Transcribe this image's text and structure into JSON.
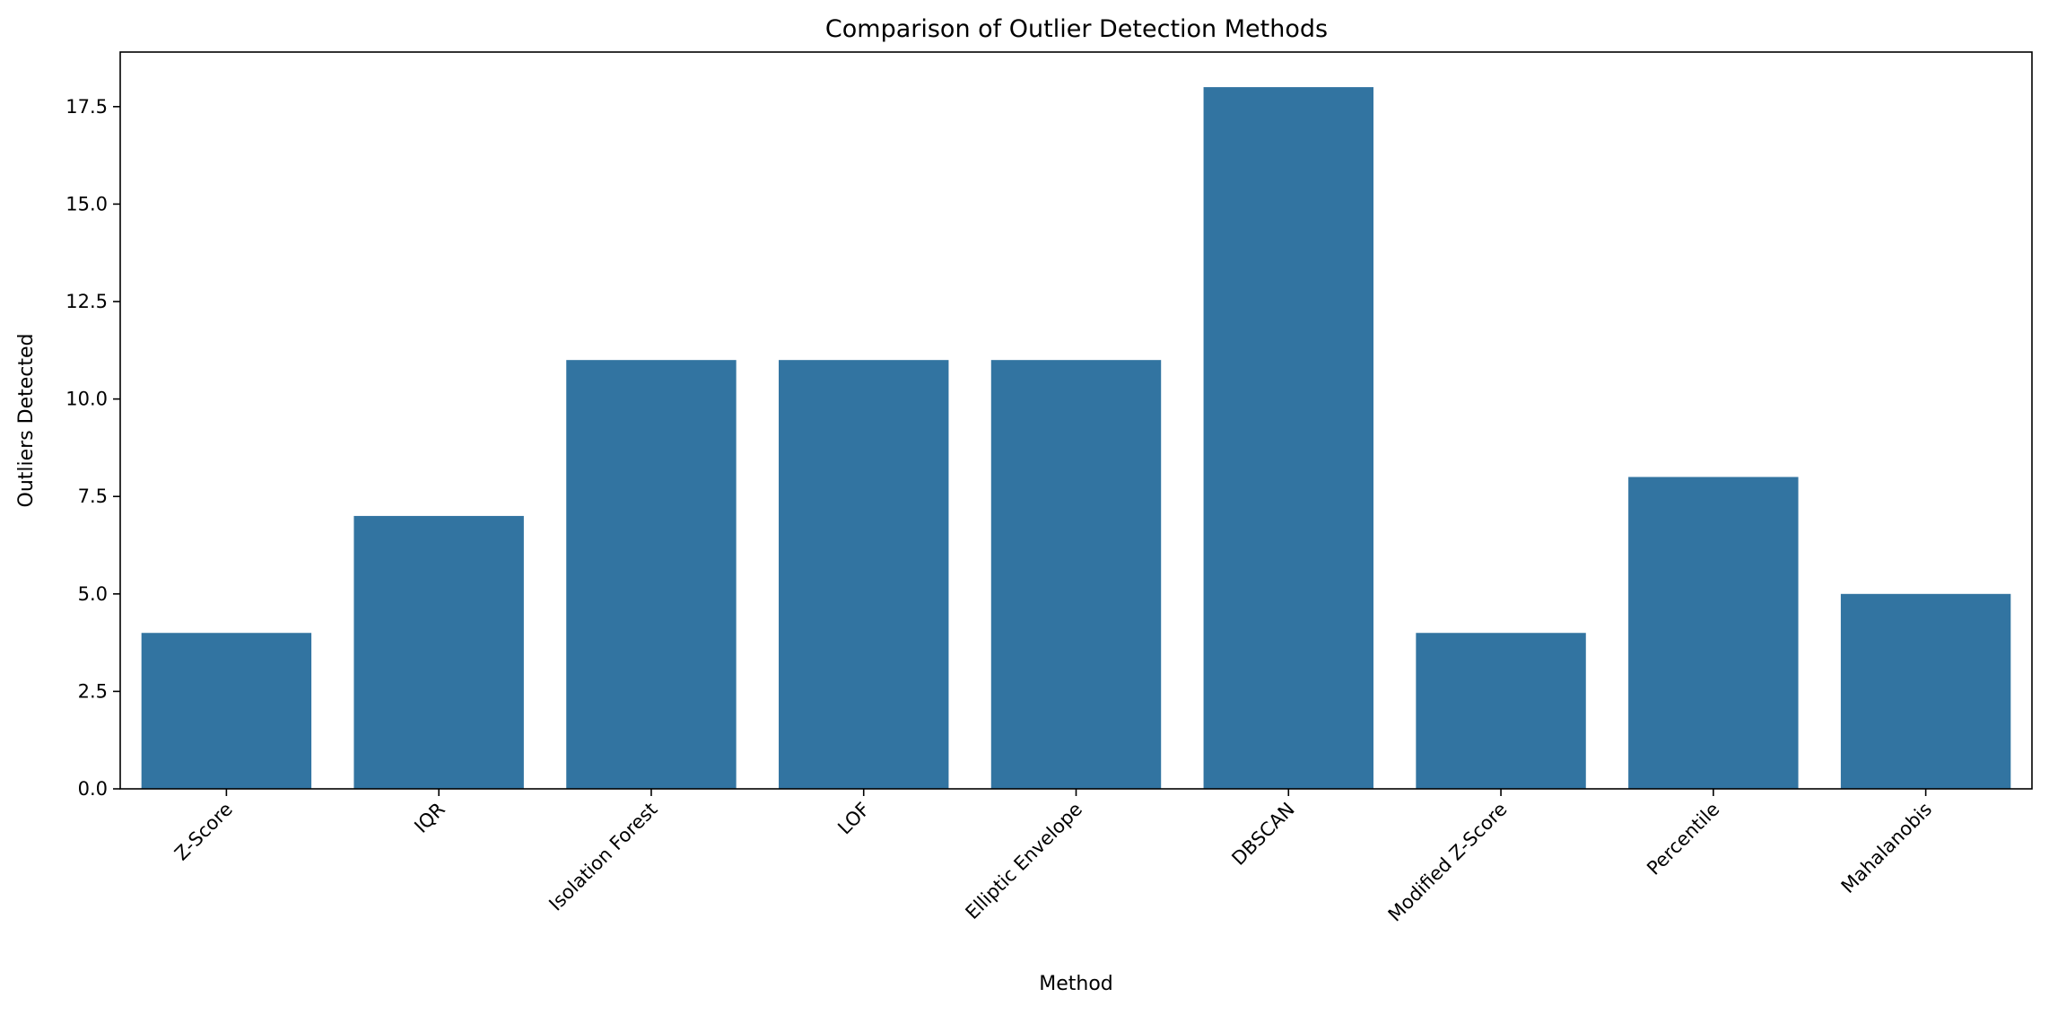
{
  "chart_data": {
    "type": "bar",
    "title": "Comparison of Outlier Detection Methods",
    "xlabel": "Method",
    "ylabel": "Outliers Detected",
    "categories": [
      "Z-Score",
      "IQR",
      "Isolation Forest",
      "LOF",
      "Elliptic Envelope",
      "DBSCAN",
      "Modified Z-Score",
      "Percentile",
      "Mahalanobis"
    ],
    "values": [
      4,
      7,
      11,
      11,
      11,
      18,
      4,
      8,
      5
    ],
    "ylim": [
      0,
      18.9
    ],
    "yticks": [
      "0.0",
      "2.5",
      "5.0",
      "7.5",
      "10.0",
      "12.5",
      "15.0",
      "17.5"
    ],
    "bar_color": "#3274a1",
    "grid": false,
    "legend": "none"
  }
}
